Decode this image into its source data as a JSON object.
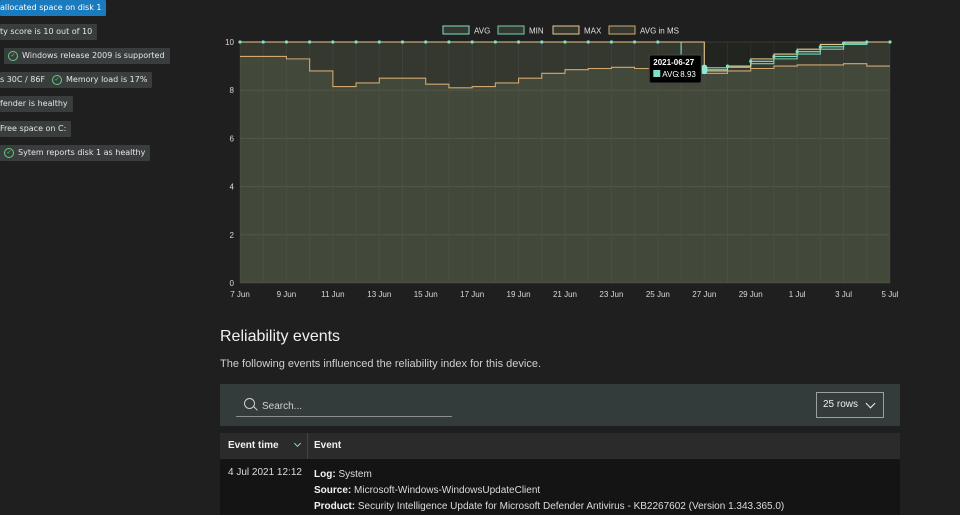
{
  "chips": [
    {
      "text": "allocated space on disk 1",
      "style": "blue",
      "check": false
    },
    {
      "text": "ty score is 10 out of 10",
      "style": "gray",
      "check": false
    },
    {
      "text": "Windows release 2009 is supported",
      "style": "gray",
      "check": true
    },
    {
      "text": "s 30C / 86F",
      "style": "gray",
      "check": false
    },
    {
      "text": "Memory load is 17%",
      "style": "gray",
      "check": true
    },
    {
      "text": "fender is healthy",
      "style": "gray",
      "check": false
    },
    {
      "text": "Free space on C:",
      "style": "gray",
      "check": false
    },
    {
      "text": "Sytem reports disk 1 as healthy",
      "style": "gray",
      "check": true
    }
  ],
  "chart_data": {
    "type": "line",
    "x": [
      "7 Jun",
      "8 Jun",
      "9 Jun",
      "10 Jun",
      "11 Jun",
      "12 Jun",
      "13 Jun",
      "14 Jun",
      "15 Jun",
      "16 Jun",
      "17 Jun",
      "18 Jun",
      "19 Jun",
      "20 Jun",
      "21 Jun",
      "22 Jun",
      "23 Jun",
      "24 Jun",
      "25 Jun",
      "26 Jun",
      "27 Jun",
      "28 Jun",
      "29 Jun",
      "30 Jun",
      "1 Jul",
      "2 Jul",
      "3 Jul",
      "4 Jul",
      "5 Jul"
    ],
    "x_tick_labels": [
      "7 Jun",
      "9 Jun",
      "11 Jun",
      "13 Jun",
      "15 Jun",
      "17 Jun",
      "19 Jun",
      "21 Jun",
      "23 Jun",
      "25 Jun",
      "27 Jun",
      "29 Jun",
      "1 Jul",
      "3 Jul",
      "5 Jul"
    ],
    "y_ticks": [
      "0",
      "2",
      "4",
      "6",
      "8",
      "10"
    ],
    "ylim": [
      0,
      10
    ],
    "series": [
      {
        "name": "AVG",
        "color": "#7fe0c8",
        "values": [
          10,
          10,
          10,
          10,
          10,
          10,
          10,
          10,
          10,
          10,
          10,
          10,
          10,
          10,
          10,
          10,
          10,
          10,
          10,
          8.8,
          8.93,
          9.0,
          9.2,
          9.4,
          9.6,
          9.8,
          9.95,
          10,
          10
        ]
      },
      {
        "name": "MIN",
        "color": "#6fd3b4",
        "values": [
          10,
          10,
          10,
          10,
          10,
          10,
          10,
          10,
          10,
          10,
          10,
          10,
          10,
          10,
          10,
          10,
          10,
          10,
          10,
          8.7,
          8.85,
          8.95,
          9.1,
          9.3,
          9.5,
          9.7,
          9.9,
          10,
          10
        ]
      },
      {
        "name": "MAX",
        "color": "#e6c98a",
        "values": [
          10,
          10,
          10,
          10,
          10,
          10,
          10,
          10,
          10,
          10,
          10,
          10,
          10,
          10,
          10,
          10,
          10,
          10,
          10,
          10,
          8.8,
          9.0,
          9.3,
          9.5,
          9.7,
          9.9,
          10,
          10,
          10
        ]
      },
      {
        "name": "AVG in MS",
        "color": "#d1a870",
        "values": [
          9.4,
          9.4,
          9.3,
          8.8,
          8.15,
          8.3,
          8.5,
          8.5,
          8.25,
          8.1,
          8.15,
          8.3,
          8.5,
          8.7,
          8.85,
          8.9,
          8.95,
          8.9,
          8.95,
          8.95,
          8.7,
          8.8,
          8.9,
          9.0,
          9.05,
          9.05,
          9.1,
          9.0,
          9.0
        ]
      }
    ],
    "tooltip": {
      "date": "2021-06-27",
      "series": "AVG",
      "value": "8.93"
    },
    "grid": true,
    "legend_position": "top"
  },
  "section": {
    "title": "Reliability events",
    "description": "The following events influenced the reliability index for this device."
  },
  "search": {
    "placeholder": "Search..."
  },
  "rows_select": {
    "label": "25 rows"
  },
  "table": {
    "col_time": "Event time",
    "col_event": "Event",
    "rows": [
      {
        "time": "4 Jul 2021 12:12",
        "log_label": "Log:",
        "log": "System",
        "source_label": "Source:",
        "source": "Microsoft-Windows-WindowsUpdateClient",
        "product_label": "Product:",
        "product": "Security Intelligence Update for Microsoft Defender Antivirus - KB2267602 (Version 1.343.365.0)"
      }
    ]
  }
}
